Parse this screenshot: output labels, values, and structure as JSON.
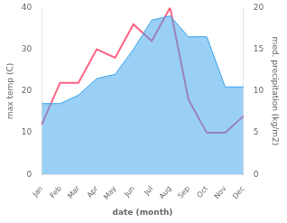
{
  "chart_data": {
    "type": "line",
    "xlabel": "date (month)",
    "ylabel": "max temp (C)",
    "y2label": "med. precipitation (kg/m2)",
    "categories": [
      "Jan",
      "Feb",
      "Mar",
      "Apr",
      "May",
      "Jun",
      "Jul",
      "Aug",
      "Sep",
      "Oct",
      "Nov",
      "Dec"
    ],
    "series": [
      {
        "type": "area",
        "values": [
          17,
          17,
          19,
          23,
          24,
          30,
          37,
          38,
          33,
          33,
          21,
          21
        ]
      },
      {
        "type": "line",
        "axis": "y2",
        "values": [
          6,
          11,
          11,
          15,
          14,
          18,
          16,
          20,
          9,
          5,
          5,
          7
        ]
      }
    ],
    "ylim": [
      0,
      40
    ],
    "yticks": [
      0,
      10,
      20,
      30,
      40
    ],
    "y2lim": [
      0,
      20
    ],
    "y2ticks": [
      0,
      5,
      10,
      15,
      20
    ],
    "grid": false
  }
}
